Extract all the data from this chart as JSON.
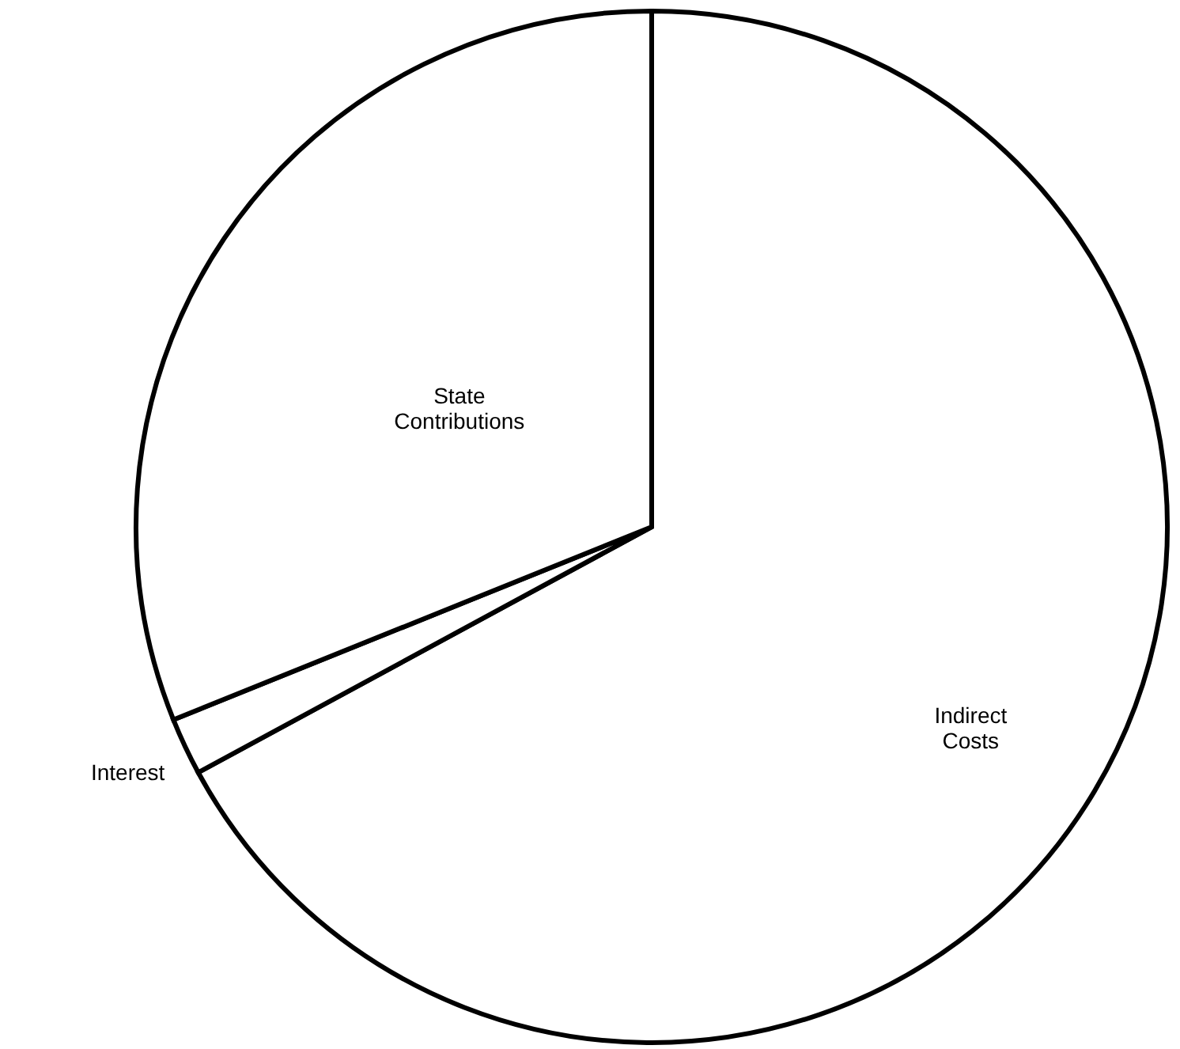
{
  "chart_data": {
    "type": "pie",
    "categories": [
      "Indirect Costs",
      "Interest",
      "State Contributions"
    ],
    "values": [
      67.1,
      1.8,
      31.1
    ],
    "colors": [
      "#ffffff",
      "#ffffff",
      "#ffffff"
    ]
  }
}
